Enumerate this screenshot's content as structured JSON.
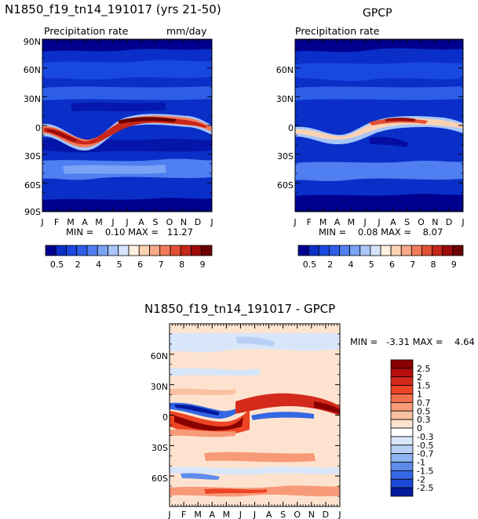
{
  "chart_data": [
    {
      "type": "heatmap",
      "title": "N1850_f19_tn14_191017 (yrs 21-50)",
      "subtitle": "Precipitation rate",
      "units": "mm/day",
      "x_tick_labels": [
        "J",
        "F",
        "M",
        "A",
        "M",
        "J",
        "J",
        "A",
        "S",
        "O",
        "N",
        "D",
        "J"
      ],
      "y_tick_labels": [
        "90N",
        "60N",
        "30N",
        "0",
        "30S",
        "60S",
        "90S"
      ],
      "ylim": [
        -90,
        90
      ],
      "min_max_text": "MIN =    0.10 MAX =   11.27",
      "min": 0.1,
      "max": 11.27,
      "colorbar": {
        "orientation": "horizontal",
        "tick_labels": [
          "0.5",
          "2",
          "4",
          "5",
          "6",
          "7",
          "8",
          "9"
        ],
        "colors": [
          "#000090",
          "#0a2fc8",
          "#1848e0",
          "#2e5ee8",
          "#4f7ff0",
          "#7aa3f5",
          "#a8c6fa",
          "#d6e4fc",
          "#fef0e0",
          "#fcd2b3",
          "#f8a888",
          "#f37b59",
          "#e34f33",
          "#c7261a",
          "#9c0a0a",
          "#6b0000"
        ]
      },
      "description_fields": {
        "itcz": "strong band near the equator, south in Jan-Apr (about 5S), north in Jul-Sep (about 10N)"
      }
    },
    {
      "type": "heatmap",
      "title": "GPCP",
      "subtitle": "Precipitation rate",
      "units": "",
      "x_tick_labels": [
        "J",
        "F",
        "M",
        "A",
        "M",
        "J",
        "J",
        "A",
        "S",
        "O",
        "N",
        "D",
        "J"
      ],
      "y_tick_labels": [
        "60N",
        "30N",
        "0",
        "30S",
        "60S"
      ],
      "ylim": [
        -90,
        90
      ],
      "min_max_text": "MIN =    0.08 MAX =    8.07",
      "min": 0.08,
      "max": 8.07,
      "colorbar": {
        "orientation": "horizontal",
        "tick_labels": [
          "0.5",
          "2",
          "4",
          "5",
          "6",
          "7",
          "8",
          "9"
        ],
        "colors": [
          "#000090",
          "#0a2fc8",
          "#1848e0",
          "#2e5ee8",
          "#4f7ff0",
          "#7aa3f5",
          "#a8c6fa",
          "#d6e4fc",
          "#fef0e0",
          "#fcd2b3",
          "#f8a888",
          "#f37b59",
          "#e34f33",
          "#c7261a",
          "#9c0a0a",
          "#6b0000"
        ]
      }
    },
    {
      "type": "heatmap",
      "title": "N1850_f19_tn14_191017 - GPCP",
      "x_tick_labels": [
        "J",
        "F",
        "M",
        "A",
        "M",
        "J",
        "J",
        "A",
        "S",
        "O",
        "N",
        "D",
        "J"
      ],
      "y_tick_labels": [
        "60N",
        "30N",
        "0",
        "30S",
        "60S"
      ],
      "ylim": [
        -90,
        90
      ],
      "min_max_text": "MIN =   -3.31 MAX =    4.64",
      "min": -3.31,
      "max": 4.64,
      "colorbar": {
        "orientation": "vertical",
        "tick_labels": [
          "2.5",
          "2",
          "1.5",
          "1",
          "0.7",
          "0.5",
          "0.3",
          "0",
          "-0.3",
          "-0.5",
          "-0.7",
          "-1",
          "-1.5",
          "-2",
          "-2.5"
        ],
        "colors": [
          "#8a0000",
          "#b80f0f",
          "#d42a1b",
          "#ec4424",
          "#f3704c",
          "#f79a78",
          "#fac0a2",
          "#fde3cf",
          "#ffffff",
          "#d8e6fa",
          "#b8d0f6",
          "#8fb2f0",
          "#5f8ceb",
          "#3468e4",
          "#1d47d6",
          "#001a9e"
        ]
      }
    }
  ]
}
